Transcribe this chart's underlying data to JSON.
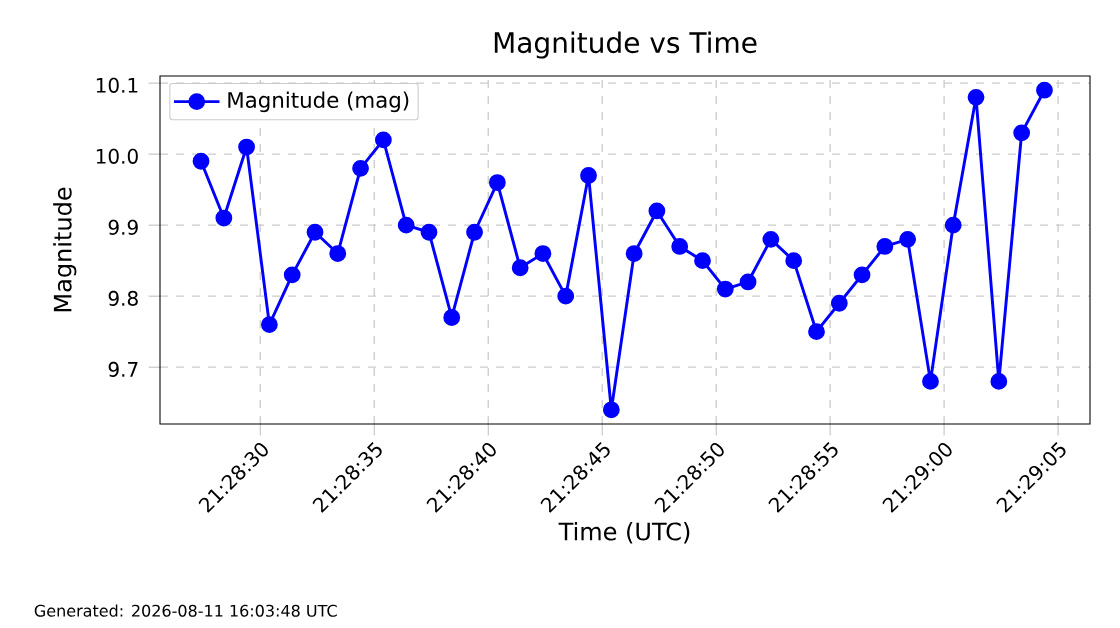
{
  "chart_data": {
    "type": "line",
    "title": "Magnitude vs Time",
    "xlabel": "Time (UTC)",
    "ylabel": "Magnitude",
    "annotations": [
      "Generated: 2026-08-11 16:03:48 UTC"
    ],
    "x": [
      21.474278,
      21.474556,
      21.474833,
      21.475111,
      21.475389,
      21.475667,
      21.475944,
      21.476222,
      21.4765,
      21.476778,
      21.477056,
      21.477333,
      21.477611,
      21.477889,
      21.478167,
      21.478444,
      21.478722,
      21.479,
      21.479278,
      21.479556,
      21.479833,
      21.480111,
      21.480389,
      21.480667,
      21.480944,
      21.481222,
      21.4815,
      21.481778,
      21.482056,
      21.482333,
      21.482611,
      21.482889,
      21.483167,
      21.483444,
      21.483722,
      21.484,
      21.484278,
      21.484556
    ],
    "series": [
      {
        "name": "Magnitude (mag)",
        "color": "#0000ff",
        "values": [
          9.99,
          9.91,
          10.01,
          9.76,
          9.83,
          9.89,
          9.86,
          9.98,
          10.02,
          9.9,
          9.89,
          9.77,
          9.89,
          9.96,
          9.84,
          9.86,
          9.8,
          9.97,
          9.64,
          9.86,
          9.92,
          9.87,
          9.85,
          9.81,
          9.82,
          9.88,
          9.85,
          9.75,
          9.79,
          9.83,
          9.87,
          9.88,
          9.68,
          9.9,
          10.08,
          9.68,
          10.03,
          10.09
        ]
      }
    ],
    "xlim": [
      21.473778,
      21.485111
    ],
    "ylim": [
      9.62,
      10.11
    ],
    "xticks": [
      {
        "value": 21.475,
        "label": "21:28:30"
      },
      {
        "value": 21.476389,
        "label": "21:28:35"
      },
      {
        "value": 21.477778,
        "label": "21:28:40"
      },
      {
        "value": 21.479167,
        "label": "21:28:45"
      },
      {
        "value": 21.480556,
        "label": "21:28:50"
      },
      {
        "value": 21.481944,
        "label": "21:28:55"
      },
      {
        "value": 21.483333,
        "label": "21:29:00"
      },
      {
        "value": 21.484722,
        "label": "21:29:05"
      }
    ],
    "yticks": [
      9.7,
      9.8,
      9.9,
      {
        "value": 10,
        "label": "10.0"
      },
      10.1
    ],
    "grid": true,
    "legend": "top left",
    "marker": "circle",
    "line_style": "solid"
  }
}
